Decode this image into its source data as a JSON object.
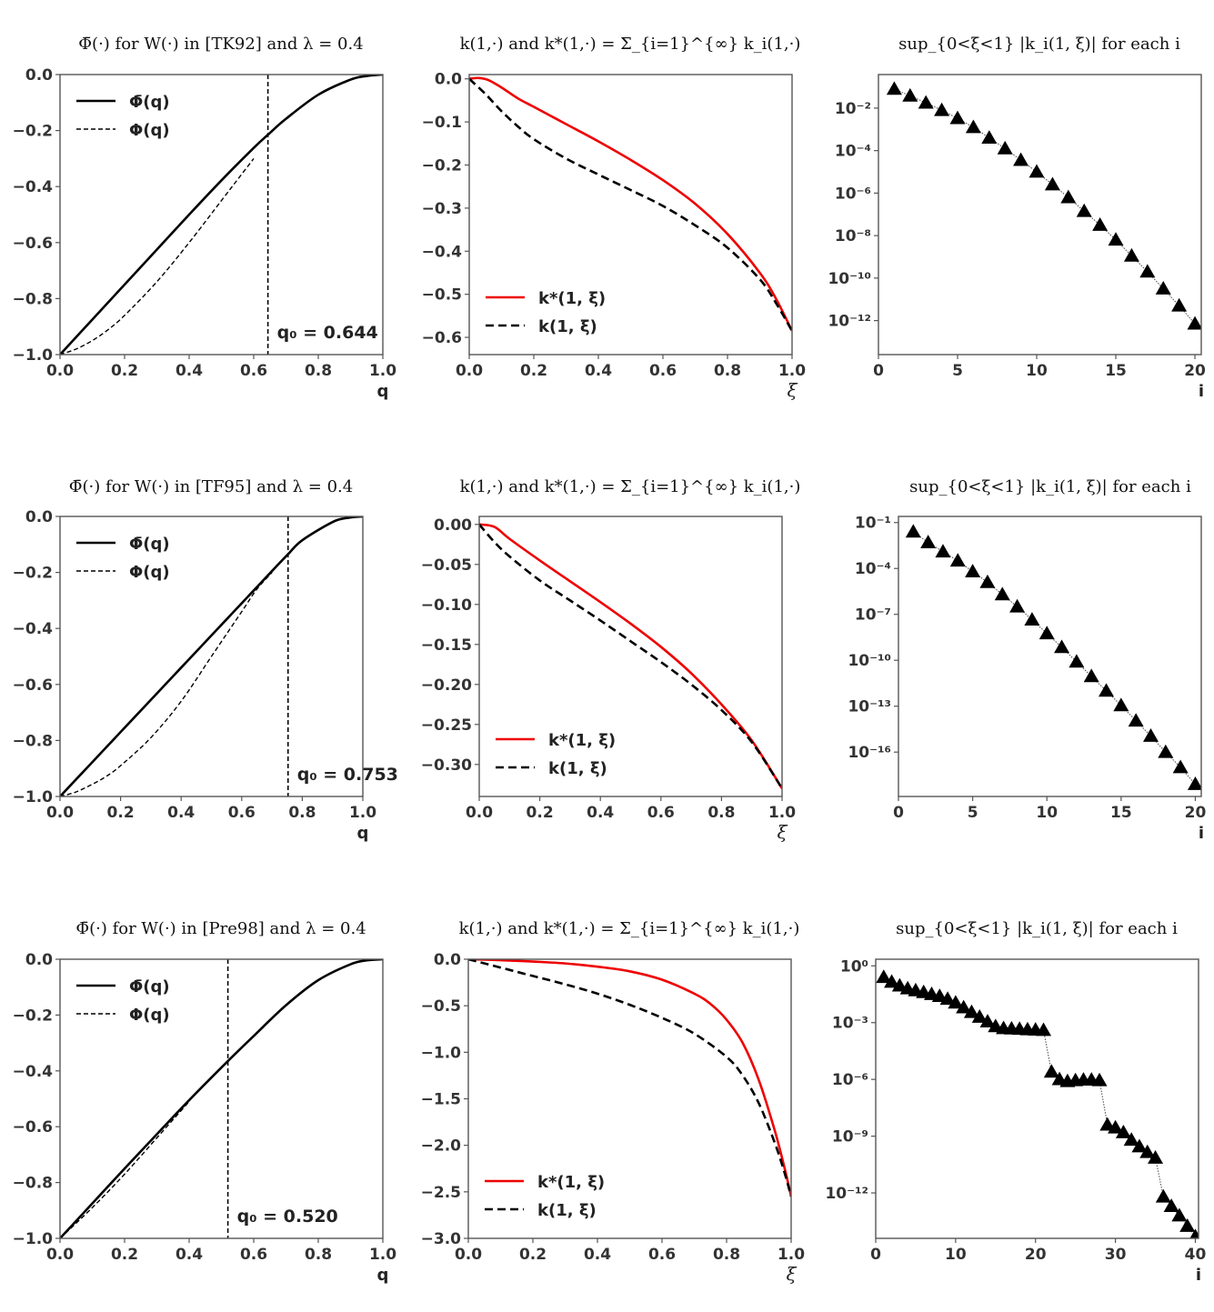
{
  "figure": {
    "rows": [
      {
        "reference": "TK92",
        "phi_panel": {
          "title_parts": [
            "Φ̄(·)",
            " for ",
            "W(·)",
            " in [TK92] and λ = ",
            "0.4"
          ],
          "title_text": "Φ̄(·) for W(·) in [TK92] and λ = 0.4",
          "xlabel": "q",
          "q0": 0.644,
          "q0_label": "q₀ = 0.644",
          "legend": [
            "Φ̄(q)",
            "Φ(q)"
          ]
        },
        "k_panel": {
          "title_text": "k(1,·) and k*(1,·) = Σ_{i=1}^{∞} k_i(1,·)",
          "xlabel": "ξ",
          "legend": [
            "k*(1, ξ)",
            "k(1, ξ)"
          ]
        },
        "sup_panel": {
          "title_text": "sup_{0<ξ<1} |k_i(1, ξ)|  for each  i",
          "xlabel": "i"
        }
      },
      {
        "reference": "TF95",
        "phi_panel": {
          "title_text": "Φ̄(·) for W(·) in [TF95] and λ = 0.4",
          "xlabel": "q",
          "q0": 0.753,
          "q0_label": "q₀ = 0.753",
          "legend": [
            "Φ̄(q)",
            "Φ(q)"
          ]
        },
        "k_panel": {
          "title_text": "k(1,·) and k*(1,·) = Σ_{i=1}^{∞} k_i(1,·)",
          "xlabel": "ξ",
          "legend": [
            "k*(1, ξ)",
            "k(1, ξ)"
          ]
        },
        "sup_panel": {
          "title_text": "sup_{0<ξ<1} |k_i(1, ξ)|  for each  i",
          "xlabel": "i"
        }
      },
      {
        "reference": "Pre98",
        "phi_panel": {
          "title_text": "Φ̄(·) for W(·) in [Pre98] and λ = 0.4",
          "xlabel": "q",
          "q0": 0.52,
          "q0_label": "q₀ = 0.520",
          "legend": [
            "Φ̄(q)",
            "Φ(q)"
          ]
        },
        "k_panel": {
          "title_text": "k(1,·) and k*(1,·) = Σ_{i=1}^{∞} k_i(1,·)",
          "xlabel": "ξ",
          "legend": [
            "k*(1, ξ)",
            "k(1, ξ)"
          ]
        },
        "sup_panel": {
          "title_text": "sup_{0<ξ<1} |k_i(1, ξ)|  for each  i",
          "xlabel": "i"
        }
      }
    ]
  },
  "colors": {
    "kstar": "#ee0000",
    "k": "#000000",
    "phi": "#000000",
    "axis": "#555555",
    "text": "#333333"
  },
  "chart_data": [
    {
      "id": "r1-phi",
      "type": "line",
      "title": "Φ̄(·) for W(·) in [TK92] and λ = 0.4",
      "xlabel": "q",
      "ylabel": "",
      "xlim": [
        0,
        1
      ],
      "ylim": [
        -1,
        0
      ],
      "xticks": [
        0.0,
        0.2,
        0.4,
        0.6,
        0.8,
        1.0
      ],
      "xticklabels": [
        "0.0",
        "0.2",
        "0.4",
        "0.6",
        "0.8",
        "1.0"
      ],
      "yticks": [
        0.0,
        -0.2,
        -0.4,
        -0.6,
        -0.8,
        -1.0
      ],
      "yticklabels": [
        "0.0",
        "−0.2",
        "−0.4",
        "−0.6",
        "−0.8",
        "−1.0"
      ],
      "legend_position": "top-left",
      "vline": {
        "x": 0.644,
        "label": "q₀ = 0.644"
      },
      "series": [
        {
          "name": "Φ̄(q)",
          "style": "solid",
          "x": [
            0,
            0.1,
            0.2,
            0.3,
            0.4,
            0.5,
            0.6,
            0.644,
            0.7,
            0.8,
            0.9,
            0.95,
            1.0
          ],
          "y": [
            -1.0,
            -0.875,
            -0.75,
            -0.625,
            -0.5,
            -0.378,
            -0.262,
            -0.215,
            -0.158,
            -0.072,
            -0.018,
            -0.005,
            0.0
          ]
        },
        {
          "name": "Φ(q)",
          "style": "dashed",
          "x": [
            0,
            0.05,
            0.1,
            0.15,
            0.2,
            0.3,
            0.4,
            0.5,
            0.55,
            0.6
          ],
          "y": [
            -1.0,
            -0.98,
            -0.95,
            -0.91,
            -0.86,
            -0.74,
            -0.6,
            -0.45,
            -0.375,
            -0.3
          ]
        }
      ]
    },
    {
      "id": "r1-k",
      "type": "line",
      "title": "k(1,·) and k*(1,·) = Σ_{i=1}^{∞} k_i(1,·)",
      "xlabel": "ξ",
      "ylabel": "",
      "xlim": [
        0,
        1
      ],
      "ylim": [
        -0.64,
        0.01
      ],
      "xticks": [
        0.0,
        0.2,
        0.4,
        0.6,
        0.8,
        1.0
      ],
      "xticklabels": [
        "0.0",
        "0.2",
        "0.4",
        "0.6",
        "0.8",
        "1.0"
      ],
      "yticks": [
        0.0,
        -0.1,
        -0.2,
        -0.3,
        -0.4,
        -0.5,
        -0.6
      ],
      "yticklabels": [
        "0.0",
        "−0.1",
        "−0.2",
        "−0.3",
        "−0.4",
        "−0.5",
        "−0.6"
      ],
      "legend_position": "bottom-left",
      "series": [
        {
          "name": "k*(1, ξ)",
          "style": "solid",
          "color": "#ee0000",
          "x": [
            0,
            0.03,
            0.06,
            0.1,
            0.15,
            0.2,
            0.3,
            0.4,
            0.5,
            0.6,
            0.7,
            0.8,
            0.9,
            0.95,
            1.0
          ],
          "y": [
            0,
            0.002,
            -0.003,
            -0.02,
            -0.045,
            -0.065,
            -0.105,
            -0.145,
            -0.188,
            -0.235,
            -0.29,
            -0.36,
            -0.45,
            -0.51,
            -0.585
          ]
        },
        {
          "name": "k(1, ξ)",
          "style": "dashed",
          "color": "#000000",
          "x": [
            0,
            0.05,
            0.1,
            0.15,
            0.2,
            0.3,
            0.4,
            0.5,
            0.6,
            0.7,
            0.8,
            0.9,
            0.95,
            1.0
          ],
          "y": [
            0,
            -0.035,
            -0.075,
            -0.11,
            -0.14,
            -0.185,
            -0.222,
            -0.258,
            -0.295,
            -0.34,
            -0.392,
            -0.465,
            -0.52,
            -0.585
          ]
        }
      ]
    },
    {
      "id": "r1-sup",
      "type": "scatter",
      "title": "sup_{0<ξ<1} |k_i(1, ξ)|  for each  i",
      "xlabel": "i",
      "ylabel": "",
      "yscale": "log",
      "xlim": [
        0,
        20.4
      ],
      "ylim_exp": [
        -13.6,
        -0.42
      ],
      "xticks": [
        0,
        5,
        10,
        15,
        20
      ],
      "xticklabels": [
        "0",
        "5",
        "10",
        "15",
        "20"
      ],
      "yticks_exp": [
        -2,
        -4,
        -6,
        -8,
        -10,
        -12
      ],
      "yticklabels": [
        "10⁻²",
        "10⁻⁴",
        "10⁻⁶",
        "10⁻⁸",
        "10⁻¹⁰",
        "10⁻¹²"
      ],
      "marker": "triangle",
      "x": [
        1,
        2,
        3,
        4,
        5,
        6,
        7,
        8,
        9,
        10,
        11,
        12,
        13,
        14,
        15,
        16,
        17,
        18,
        19,
        20
      ],
      "log10_y": [
        -1.1,
        -1.42,
        -1.75,
        -2.1,
        -2.48,
        -2.9,
        -3.4,
        -3.9,
        -4.45,
        -5.0,
        -5.6,
        -6.2,
        -6.85,
        -7.5,
        -8.2,
        -8.95,
        -9.7,
        -10.5,
        -11.3,
        -12.15
      ]
    },
    {
      "id": "r2-phi",
      "type": "line",
      "title": "Φ̄(·) for W(·) in [TF95] and λ = 0.4",
      "xlabel": "q",
      "ylabel": "",
      "xlim": [
        0,
        1
      ],
      "ylim": [
        -1,
        0
      ],
      "xticks": [
        0.0,
        0.2,
        0.4,
        0.6,
        0.8,
        1.0
      ],
      "xticklabels": [
        "0.0",
        "0.2",
        "0.4",
        "0.6",
        "0.8",
        "1.0"
      ],
      "yticks": [
        0.0,
        -0.2,
        -0.4,
        -0.6,
        -0.8,
        -1.0
      ],
      "yticklabels": [
        "0.0",
        "−0.2",
        "−0.4",
        "−0.6",
        "−0.8",
        "−1.0"
      ],
      "legend_position": "top-left",
      "vline": {
        "x": 0.753,
        "label": "q₀ = 0.753"
      },
      "series": [
        {
          "name": "Φ̄(q)",
          "style": "solid",
          "x": [
            0,
            0.1,
            0.2,
            0.3,
            0.4,
            0.5,
            0.6,
            0.7,
            0.753,
            0.8,
            0.9,
            0.95,
            1.0
          ],
          "y": [
            -1.0,
            -0.885,
            -0.77,
            -0.655,
            -0.54,
            -0.425,
            -0.31,
            -0.195,
            -0.135,
            -0.085,
            -0.02,
            -0.005,
            0.0
          ]
        },
        {
          "name": "Φ(q)",
          "style": "dashed",
          "x": [
            0,
            0.05,
            0.1,
            0.15,
            0.2,
            0.3,
            0.4,
            0.5,
            0.6,
            0.65,
            0.7
          ],
          "y": [
            -1.0,
            -0.985,
            -0.96,
            -0.93,
            -0.89,
            -0.79,
            -0.66,
            -0.5,
            -0.34,
            -0.26,
            -0.2
          ]
        }
      ]
    },
    {
      "id": "r2-k",
      "type": "line",
      "title": "k(1,·) and k*(1,·) = Σ_{i=1}^{∞} k_i(1,·)",
      "xlabel": "ξ",
      "ylabel": "",
      "xlim": [
        0,
        1
      ],
      "ylim": [
        -0.34,
        0.01
      ],
      "xticks": [
        0.0,
        0.2,
        0.4,
        0.6,
        0.8,
        1.0
      ],
      "xticklabels": [
        "0.0",
        "0.2",
        "0.4",
        "0.6",
        "0.8",
        "1.0"
      ],
      "yticks": [
        0.0,
        -0.05,
        -0.1,
        -0.15,
        -0.2,
        -0.25,
        -0.3
      ],
      "yticklabels": [
        "0.00",
        "−0.05",
        "−0.10",
        "−0.15",
        "−0.20",
        "−0.25",
        "−0.30"
      ],
      "legend_position": "bottom-left",
      "series": [
        {
          "name": "k*(1, ξ)",
          "style": "solid",
          "color": "#ee0000",
          "x": [
            0,
            0.05,
            0.1,
            0.2,
            0.3,
            0.4,
            0.5,
            0.6,
            0.7,
            0.8,
            0.9,
            1.0
          ],
          "y": [
            0,
            -0.003,
            -0.018,
            -0.045,
            -0.071,
            -0.097,
            -0.124,
            -0.153,
            -0.186,
            -0.225,
            -0.27,
            -0.33
          ]
        },
        {
          "name": "k(1, ξ)",
          "style": "dashed",
          "color": "#000000",
          "x": [
            0,
            0.05,
            0.1,
            0.2,
            0.3,
            0.4,
            0.5,
            0.6,
            0.7,
            0.8,
            0.9,
            1.0
          ],
          "y": [
            0,
            -0.022,
            -0.04,
            -0.07,
            -0.095,
            -0.12,
            -0.146,
            -0.172,
            -0.2,
            -0.232,
            -0.272,
            -0.33
          ]
        }
      ]
    },
    {
      "id": "r2-sup",
      "type": "scatter",
      "title": "sup_{0<ξ<1} |k_i(1, ξ)|  for each  i",
      "xlabel": "i",
      "ylabel": "",
      "yscale": "log",
      "xlim": [
        0,
        20.4
      ],
      "ylim_exp": [
        -18.9,
        -0.6
      ],
      "xticks": [
        0,
        5,
        10,
        15,
        20
      ],
      "xticklabels": [
        "0",
        "5",
        "10",
        "15",
        "20"
      ],
      "yticks_exp": [
        -1,
        -4,
        -7,
        -10,
        -13,
        -16
      ],
      "yticklabels": [
        "10⁻¹",
        "10⁻⁴",
        "10⁻⁷",
        "10⁻¹⁰",
        "10⁻¹³",
        "10⁻¹⁶"
      ],
      "marker": "triangle",
      "x": [
        1,
        2,
        3,
        4,
        5,
        6,
        7,
        8,
        9,
        10,
        11,
        12,
        13,
        14,
        15,
        16,
        17,
        18,
        19,
        20
      ],
      "log10_y": [
        -1.6,
        -2.3,
        -2.9,
        -3.5,
        -4.2,
        -4.9,
        -5.7,
        -6.5,
        -7.35,
        -8.25,
        -9.15,
        -10.1,
        -11.05,
        -12.0,
        -12.95,
        -13.95,
        -14.95,
        -16.0,
        -17.0,
        -18.1
      ]
    },
    {
      "id": "r3-phi",
      "type": "line",
      "title": "Φ̄(·) for W(·) in [Pre98] and λ = 0.4",
      "xlabel": "q",
      "ylabel": "",
      "xlim": [
        0,
        1
      ],
      "ylim": [
        -1,
        0
      ],
      "xticks": [
        0.0,
        0.2,
        0.4,
        0.6,
        0.8,
        1.0
      ],
      "xticklabels": [
        "0.0",
        "0.2",
        "0.4",
        "0.6",
        "0.8",
        "1.0"
      ],
      "yticks": [
        0.0,
        -0.2,
        -0.4,
        -0.6,
        -0.8,
        -1.0
      ],
      "yticklabels": [
        "0.0",
        "−0.2",
        "−0.4",
        "−0.6",
        "−0.8",
        "−1.0"
      ],
      "legend_position": "top-left",
      "vline": {
        "x": 0.52,
        "label": "q₀ = 0.520"
      },
      "series": [
        {
          "name": "Φ̄(q)",
          "style": "solid",
          "x": [
            0,
            0.1,
            0.2,
            0.3,
            0.4,
            0.52,
            0.6,
            0.7,
            0.8,
            0.9,
            0.95,
            1.0
          ],
          "y": [
            -1.0,
            -0.875,
            -0.75,
            -0.627,
            -0.505,
            -0.365,
            -0.275,
            -0.165,
            -0.075,
            -0.018,
            -0.004,
            0.0
          ]
        },
        {
          "name": "Φ(q)",
          "style": "dashed",
          "x": [
            0,
            0.1,
            0.2,
            0.3,
            0.4
          ],
          "y": [
            -1.0,
            -0.89,
            -0.77,
            -0.64,
            -0.51
          ]
        }
      ]
    },
    {
      "id": "r3-k",
      "type": "line",
      "title": "k(1,·) and k*(1,·) = Σ_{i=1}^{∞} k_i(1,·)",
      "xlabel": "ξ",
      "ylabel": "",
      "xlim": [
        0,
        1
      ],
      "ylim": [
        -3.0,
        0.0
      ],
      "xticks": [
        0.0,
        0.2,
        0.4,
        0.6,
        0.8,
        1.0
      ],
      "xticklabels": [
        "0.0",
        "0.2",
        "0.4",
        "0.6",
        "0.8",
        "1.0"
      ],
      "yticks": [
        0.0,
        -0.5,
        -1.0,
        -1.5,
        -2.0,
        -2.5,
        -3.0
      ],
      "yticklabels": [
        "0.0",
        "−0.5",
        "−1.0",
        "−1.5",
        "−2.0",
        "−2.5",
        "−3.0"
      ],
      "legend_position": "bottom-left",
      "series": [
        {
          "name": "k*(1, ξ)",
          "style": "solid",
          "color": "#ee0000",
          "x": [
            0,
            0.1,
            0.2,
            0.3,
            0.4,
            0.5,
            0.6,
            0.7,
            0.75,
            0.8,
            0.85,
            0.9,
            0.95,
            0.98,
            1.0
          ],
          "y": [
            0,
            -0.01,
            -0.025,
            -0.045,
            -0.08,
            -0.13,
            -0.22,
            -0.37,
            -0.48,
            -0.65,
            -0.9,
            -1.3,
            -1.85,
            -2.25,
            -2.55
          ]
        },
        {
          "name": "k(1, ξ)",
          "style": "dashed",
          "color": "#000000",
          "x": [
            0,
            0.1,
            0.2,
            0.3,
            0.4,
            0.5,
            0.6,
            0.7,
            0.8,
            0.85,
            0.9,
            0.95,
            0.98,
            1.0
          ],
          "y": [
            0,
            -0.09,
            -0.18,
            -0.27,
            -0.37,
            -0.49,
            -0.63,
            -0.8,
            -1.05,
            -1.25,
            -1.55,
            -1.98,
            -2.3,
            -2.55
          ]
        }
      ]
    },
    {
      "id": "r3-sup",
      "type": "scatter",
      "title": "sup_{0<ξ<1} |k_i(1, ξ)|  for each  i",
      "xlabel": "i",
      "ylabel": "",
      "yscale": "log",
      "xlim": [
        0,
        40.4
      ],
      "ylim_exp": [
        -14.4,
        0.35
      ],
      "xticks": [
        0,
        10,
        20,
        30,
        40
      ],
      "xticklabels": [
        "0",
        "10",
        "20",
        "30",
        "40"
      ],
      "yticks_exp": [
        0,
        -3,
        -6,
        -9,
        -12
      ],
      "yticklabels": [
        "10⁰",
        "10⁻³",
        "10⁻⁶",
        "10⁻⁹",
        "10⁻¹²"
      ],
      "marker": "triangle",
      "x": [
        1,
        2,
        3,
        4,
        5,
        6,
        7,
        8,
        9,
        10,
        11,
        12,
        13,
        14,
        15,
        16,
        17,
        18,
        19,
        20,
        21,
        22,
        23,
        24,
        25,
        26,
        27,
        28,
        29,
        30,
        31,
        32,
        33,
        34,
        35,
        36,
        37,
        38,
        39,
        40
      ],
      "log10_y": [
        -0.6,
        -0.85,
        -1.05,
        -1.2,
        -1.3,
        -1.4,
        -1.5,
        -1.6,
        -1.75,
        -1.95,
        -2.2,
        -2.45,
        -2.7,
        -2.95,
        -3.2,
        -3.3,
        -3.32,
        -3.34,
        -3.36,
        -3.38,
        -3.4,
        -5.6,
        -6.0,
        -6.1,
        -6.05,
        -6.02,
        -6.02,
        -6.05,
        -8.4,
        -8.55,
        -8.8,
        -9.2,
        -9.55,
        -9.85,
        -10.15,
        -12.2,
        -12.7,
        -13.2,
        -13.75,
        -14.3
      ]
    }
  ]
}
